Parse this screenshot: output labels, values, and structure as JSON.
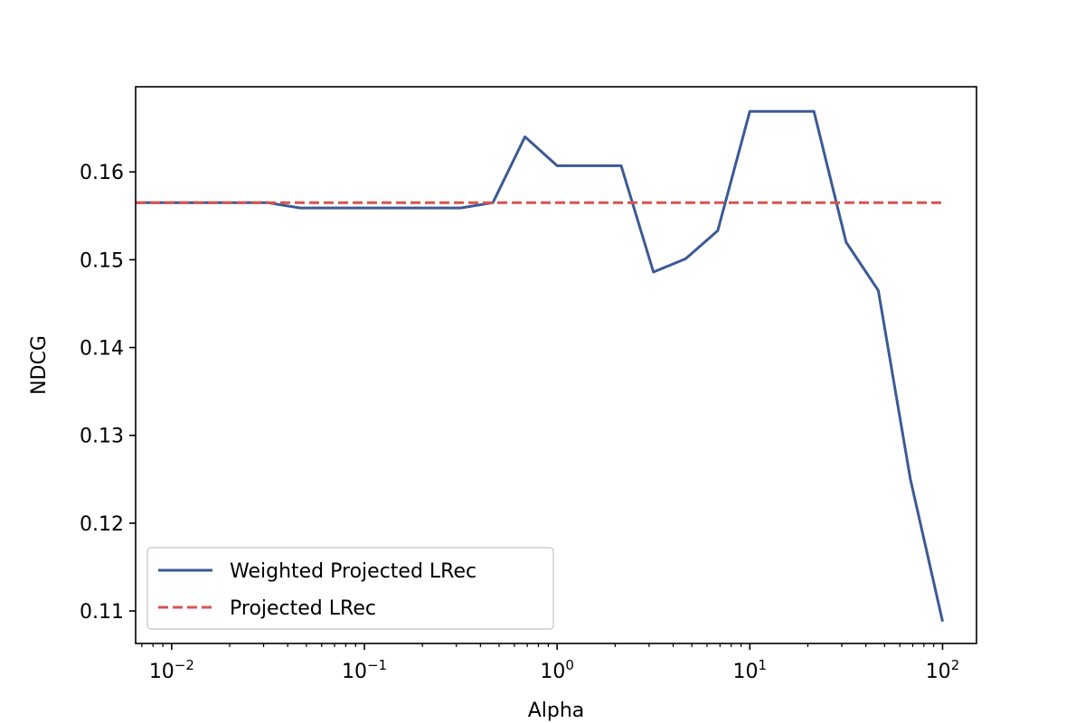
{
  "chart_data": {
    "type": "line",
    "xlabel": "Alpha",
    "ylabel": "NDCG",
    "xscale": "log",
    "xlim": [
      0.0065,
      150
    ],
    "ylim": [
      0.1063,
      0.1697
    ],
    "x_ticks": [
      {
        "value": 0.01,
        "base": "10",
        "exp": "−2"
      },
      {
        "value": 0.1,
        "base": "10",
        "exp": "−1"
      },
      {
        "value": 1,
        "base": "10",
        "exp": "0"
      },
      {
        "value": 10,
        "base": "10",
        "exp": "1"
      },
      {
        "value": 100,
        "base": "10",
        "exp": "2"
      }
    ],
    "y_ticks": [
      {
        "value": 0.11,
        "label": "0.11"
      },
      {
        "value": 0.12,
        "label": "0.12"
      },
      {
        "value": 0.13,
        "label": "0.13"
      },
      {
        "value": 0.14,
        "label": "0.14"
      },
      {
        "value": 0.15,
        "label": "0.15"
      },
      {
        "value": 0.16,
        "label": "0.16"
      }
    ],
    "grid": false,
    "legend_position": "lower-left",
    "series": [
      {
        "name": "Weighted Projected LRec",
        "style": "solid",
        "color": "#3b5a95",
        "x": [
          0.0065,
          0.01,
          0.0147,
          0.0215,
          0.0316,
          0.0464,
          0.0681,
          0.1,
          0.147,
          0.215,
          0.316,
          0.464,
          0.681,
          1.0,
          1.47,
          2.15,
          3.16,
          4.64,
          6.81,
          10.0,
          14.7,
          21.5,
          31.6,
          46.4,
          68.1,
          100
        ],
        "y": [
          0.1565,
          0.1565,
          0.1565,
          0.1565,
          0.1565,
          0.1559,
          0.1559,
          0.1559,
          0.1559,
          0.1559,
          0.1559,
          0.1565,
          0.164,
          0.1607,
          0.1607,
          0.1607,
          0.1486,
          0.1501,
          0.1533,
          0.1669,
          0.1669,
          0.1669,
          0.152,
          0.1465,
          0.125,
          0.1088
        ]
      },
      {
        "name": "Projected LRec",
        "style": "dashed",
        "color": "#d9534f",
        "x": [
          0.0065,
          100
        ],
        "y": [
          0.1565,
          0.1565
        ]
      }
    ]
  }
}
